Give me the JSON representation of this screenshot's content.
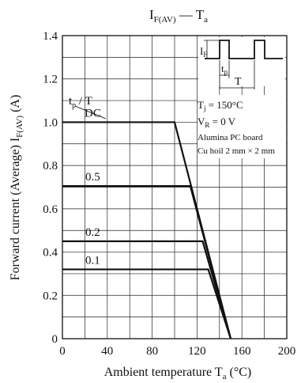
{
  "chart_data": {
    "type": "line",
    "title_main": "I",
    "title_sub": "F(AV)",
    "title_sep": " — T",
    "title_sub2": "a",
    "xlabel_main": "Ambient temperature  T",
    "xlabel_sub": "a",
    "xlabel_unit": "  (°C)",
    "ylabel_main": "Forward current (Average)  I",
    "ylabel_sub": "F(AV)",
    "ylabel_unit": "  (A)",
    "xlim": [
      0,
      200
    ],
    "ylim": [
      0,
      1.4
    ],
    "xticks": [
      "0",
      "40",
      "80",
      "120",
      "160",
      "200"
    ],
    "yticks": [
      "0",
      "0.2",
      "0.4",
      "0.6",
      "0.8",
      "1.0",
      "1.2",
      "1.4"
    ],
    "grid": true,
    "legend_header": "t",
    "legend_header_sub": "p",
    "legend_header_tail": " / T",
    "series": [
      {
        "name": "DC",
        "x": [
          0,
          100,
          150
        ],
        "y": [
          1.0,
          1.0,
          0
        ]
      },
      {
        "name": "0.5",
        "x": [
          0,
          114,
          150
        ],
        "y": [
          0.705,
          0.705,
          0
        ]
      },
      {
        "name": "0.2",
        "x": [
          0,
          125,
          150
        ],
        "y": [
          0.45,
          0.45,
          0
        ]
      },
      {
        "name": "0.1",
        "x": [
          0,
          130,
          150
        ],
        "y": [
          0.32,
          0.32,
          0
        ]
      }
    ],
    "conditions": {
      "tj": "T",
      "tj_sub": "j",
      "tj_val": " = 150°C",
      "vr": "V",
      "vr_sub": "R",
      "vr_val": " = 0 V",
      "board": "Alumina PC board",
      "foil": "Cu hoil 2 mm × 2 mm"
    },
    "waveform": {
      "i_label": "I",
      "i_sub": "F",
      "tp_label": "t",
      "tp_sub": "p",
      "t_label": "T"
    }
  }
}
